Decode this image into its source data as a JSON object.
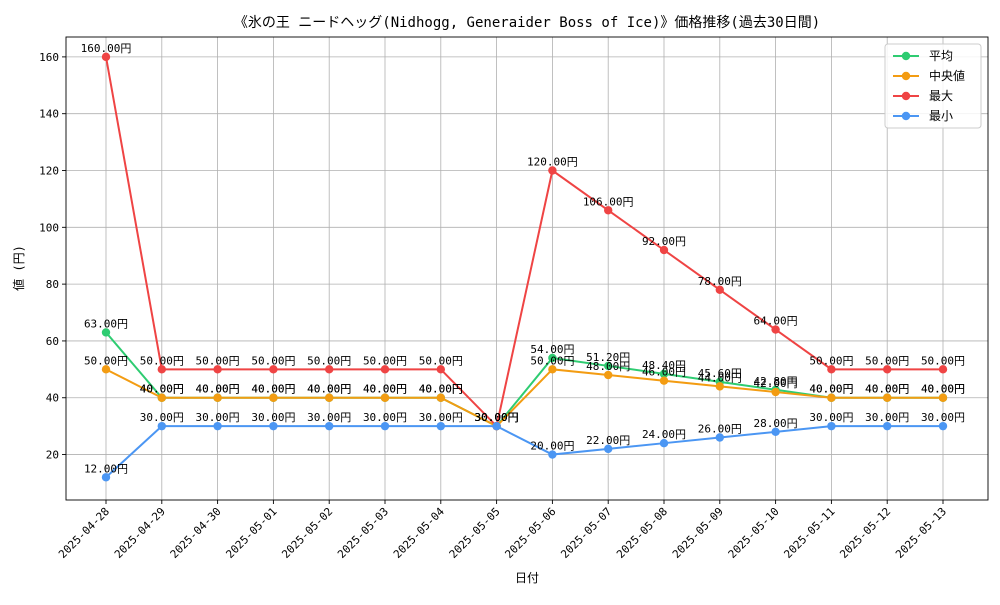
{
  "chart_data": {
    "type": "line",
    "title": "《氷の王 ニードヘッグ(Nidhogg, Generaider Boss of Ice)》価格推移(過去30日間)",
    "xlabel": "日付",
    "ylabel": "値 (円)",
    "ylim": [
      4,
      167
    ],
    "yticks": [
      20,
      40,
      60,
      80,
      100,
      120,
      140,
      160
    ],
    "grid": true,
    "legend_position": "top-right",
    "label_suffix": "円",
    "categories": [
      "2025-04-28",
      "2025-04-29",
      "2025-04-30",
      "2025-05-01",
      "2025-05-02",
      "2025-05-03",
      "2025-05-04",
      "2025-05-05",
      "2025-05-06",
      "2025-05-07",
      "2025-05-08",
      "2025-05-09",
      "2025-05-10",
      "2025-05-11",
      "2025-05-12",
      "2025-05-13"
    ],
    "series": [
      {
        "name": "平均",
        "key": "avg",
        "color": "#2ecc71",
        "values": [
          63.0,
          40.0,
          40.0,
          40.0,
          40.0,
          40.0,
          40.0,
          30.0,
          54.0,
          51.2,
          48.4,
          45.6,
          42.8,
          40.0,
          40.0,
          40.0
        ]
      },
      {
        "name": "中央値",
        "key": "median",
        "color": "#f39c12",
        "values": [
          50.0,
          40.0,
          40.0,
          40.0,
          40.0,
          40.0,
          40.0,
          30.0,
          50.0,
          48.0,
          46.0,
          44.0,
          42.0,
          40.0,
          40.0,
          40.0
        ]
      },
      {
        "name": "最大",
        "key": "max",
        "color": "#ef4444",
        "values": [
          160.0,
          50.0,
          50.0,
          50.0,
          50.0,
          50.0,
          50.0,
          30.0,
          120.0,
          106.0,
          92.0,
          78.0,
          64.0,
          50.0,
          50.0,
          50.0
        ]
      },
      {
        "name": "最小",
        "key": "min",
        "color": "#4b96f3",
        "values": [
          12.0,
          30.0,
          30.0,
          30.0,
          30.0,
          30.0,
          30.0,
          30.0,
          20.0,
          22.0,
          24.0,
          26.0,
          28.0,
          30.0,
          30.0,
          30.0
        ]
      }
    ]
  }
}
